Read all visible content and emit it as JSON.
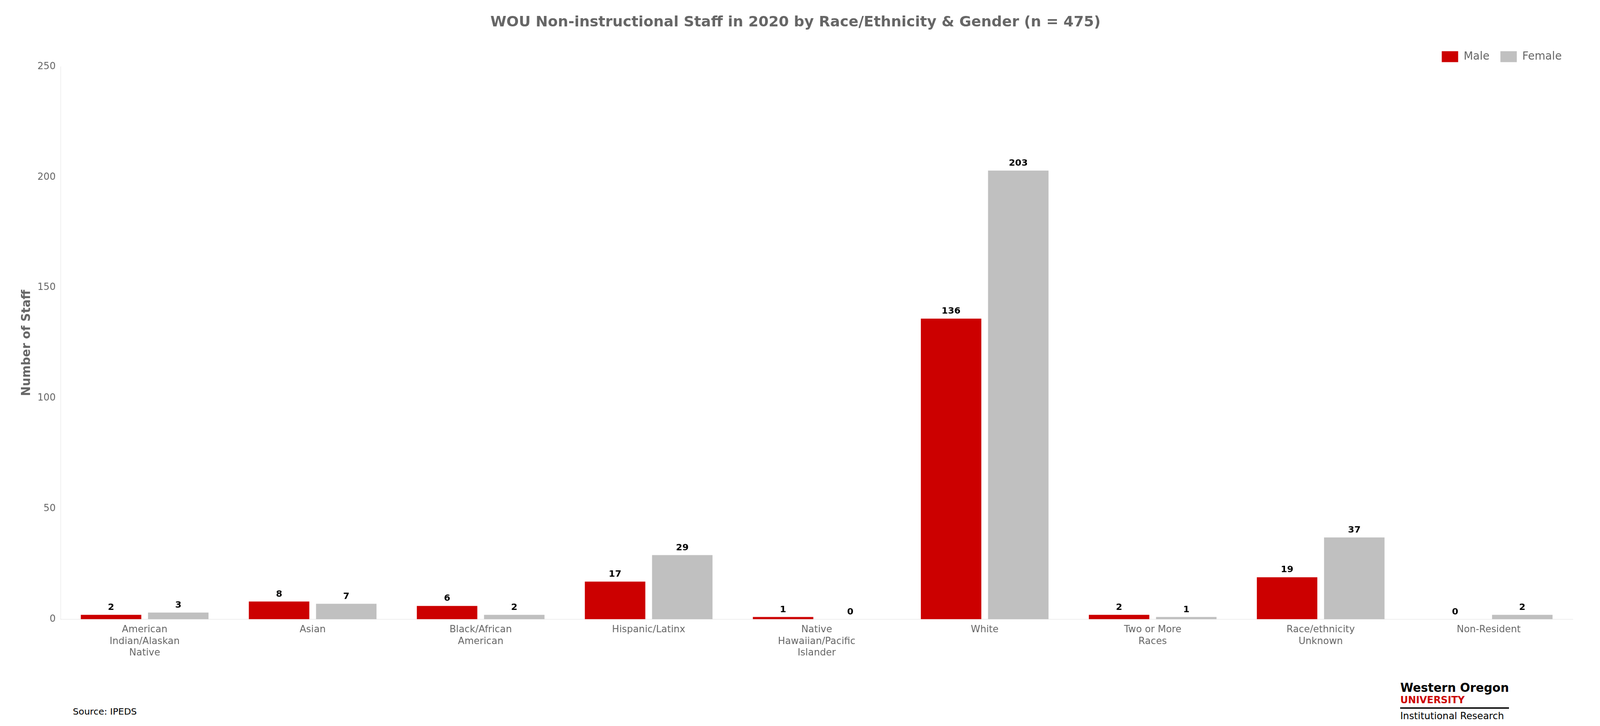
{
  "chart_data": {
    "type": "bar",
    "title": "WOU Non-instructional Staff in 2020 by Race/Ethnicity & Gender (n = 475)",
    "ylabel": "Number of Staff",
    "categories": [
      "American\nIndian/Alaskan\nNative",
      "Asian",
      "Black/African\nAmerican",
      "Hispanic/Latinx",
      "Native\nHawaiian/Pacific\nIslander",
      "White",
      "Two or More\nRaces",
      "Race/ethnicity\nUnknown",
      "Non-Resident"
    ],
    "series": [
      {
        "name": "Male",
        "color": "#CC0000",
        "values": [
          2,
          8,
          6,
          17,
          1,
          136,
          2,
          19,
          0
        ]
      },
      {
        "name": "Female",
        "color": "#C0C0C0",
        "values": [
          3,
          7,
          2,
          29,
          0,
          203,
          1,
          37,
          2
        ]
      }
    ],
    "ylim": [
      0,
      250
    ],
    "yticks": [
      0,
      50,
      100,
      150,
      200,
      250
    ],
    "grid": false,
    "legend": "upper right",
    "data_labels": true,
    "annotations": [
      "Source: IPEDS",
      "Western Oregon",
      "UNIVERSITY",
      "Institutional Research"
    ]
  }
}
